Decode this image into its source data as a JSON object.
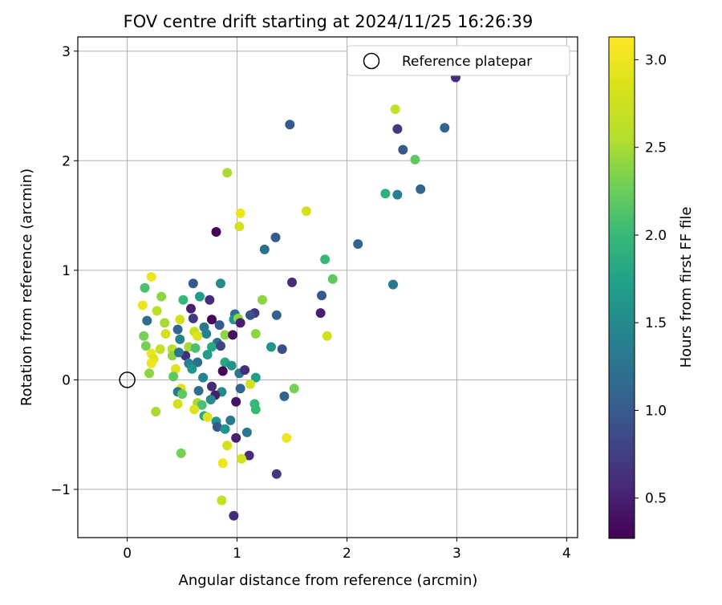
{
  "chart_data": {
    "type": "scatter",
    "title": "FOV centre drift starting at 2024/11/25 16:26:39",
    "xlabel": "Angular distance from reference (arcmin)",
    "ylabel": "Rotation from reference (arcmin)",
    "xlim": [
      -0.45,
      4.1
    ],
    "ylim": [
      -1.44,
      3.13
    ],
    "xticks": [
      0,
      1,
      2,
      3,
      4
    ],
    "xtick_labels": [
      "0",
      "1",
      "2",
      "3",
      "4"
    ],
    "yticks": [
      -1,
      0,
      1,
      2,
      3
    ],
    "ytick_labels": [
      "−1",
      "0",
      "1",
      "2",
      "3"
    ],
    "grid": true,
    "legend": {
      "label": "Reference platepar",
      "placement": "top-right"
    },
    "reference": {
      "x": 0,
      "y": 0
    },
    "colorbar": {
      "label": "Hours from first FF file",
      "min": 0.27,
      "max": 3.13,
      "colormap": "viridis",
      "ticks": [
        0.5,
        1.0,
        1.5,
        2.0,
        2.5,
        3.0
      ],
      "tick_labels": [
        "0.5",
        "1.0",
        "1.5",
        "2.0",
        "2.5",
        "3.0"
      ]
    },
    "points": [
      [
        2.99,
        2.76,
        0.6
      ],
      [
        2.44,
        2.47,
        2.7
      ],
      [
        1.48,
        2.33,
        1.0
      ],
      [
        2.46,
        2.29,
        0.7
      ],
      [
        2.89,
        2.3,
        1.1
      ],
      [
        2.51,
        2.1,
        1.0
      ],
      [
        2.62,
        2.01,
        2.2
      ],
      [
        0.91,
        1.89,
        2.5
      ],
      [
        2.35,
        1.7,
        1.9
      ],
      [
        2.46,
        1.69,
        1.4
      ],
      [
        2.67,
        1.74,
        1.1
      ],
      [
        1.03,
        1.52,
        3.0
      ],
      [
        1.63,
        1.54,
        2.8
      ],
      [
        1.02,
        1.4,
        2.8
      ],
      [
        0.81,
        1.35,
        0.3
      ],
      [
        1.35,
        1.3,
        1.0
      ],
      [
        2.1,
        1.24,
        1.1
      ],
      [
        1.25,
        1.19,
        1.2
      ],
      [
        1.8,
        1.1,
        2.0
      ],
      [
        0.22,
        0.94,
        3.0
      ],
      [
        0.85,
        0.88,
        1.5
      ],
      [
        0.6,
        0.88,
        1.0
      ],
      [
        1.5,
        0.89,
        0.6
      ],
      [
        1.87,
        0.92,
        2.2
      ],
      [
        2.42,
        0.87,
        1.3
      ],
      [
        0.16,
        0.84,
        2.1
      ],
      [
        1.77,
        0.77,
        1.0
      ],
      [
        0.31,
        0.76,
        2.4
      ],
      [
        0.66,
        0.76,
        1.7
      ],
      [
        0.51,
        0.73,
        2.0
      ],
      [
        0.75,
        0.73,
        0.6
      ],
      [
        1.23,
        0.73,
        2.4
      ],
      [
        0.14,
        0.68,
        3.0
      ],
      [
        0.58,
        0.65,
        0.5
      ],
      [
        0.27,
        0.63,
        2.6
      ],
      [
        1.16,
        0.61,
        0.7
      ],
      [
        1.12,
        0.59,
        0.9
      ],
      [
        0.98,
        0.6,
        1.2
      ],
      [
        1.36,
        0.59,
        1.1
      ],
      [
        1.76,
        0.61,
        0.5
      ],
      [
        0.18,
        0.54,
        1.2
      ],
      [
        0.48,
        0.55,
        2.8
      ],
      [
        0.6,
        0.56,
        0.7
      ],
      [
        0.77,
        0.55,
        0.3
      ],
      [
        0.97,
        0.55,
        1.6
      ],
      [
        1.01,
        0.56,
        2.4
      ],
      [
        0.34,
        0.52,
        2.5
      ],
      [
        0.7,
        0.48,
        1.3
      ],
      [
        0.84,
        0.5,
        1.0
      ],
      [
        1.03,
        0.52,
        0.5
      ],
      [
        0.46,
        0.46,
        1.1
      ],
      [
        0.61,
        0.44,
        2.7
      ],
      [
        0.72,
        0.42,
        1.4
      ],
      [
        0.89,
        0.41,
        2.4
      ],
      [
        0.96,
        0.41,
        0.4
      ],
      [
        0.15,
        0.4,
        2.3
      ],
      [
        0.35,
        0.42,
        2.8
      ],
      [
        0.64,
        0.4,
        2.9
      ],
      [
        1.17,
        0.42,
        2.4
      ],
      [
        1.82,
        0.4,
        2.8
      ],
      [
        0.48,
        0.37,
        1.4
      ],
      [
        0.82,
        0.34,
        1.2
      ],
      [
        0.17,
        0.31,
        2.3
      ],
      [
        0.3,
        0.28,
        2.7
      ],
      [
        0.41,
        0.28,
        2.6
      ],
      [
        0.56,
        0.3,
        2.5
      ],
      [
        0.62,
        0.29,
        2.1
      ],
      [
        0.77,
        0.3,
        1.8
      ],
      [
        0.85,
        0.31,
        0.8
      ],
      [
        1.31,
        0.3,
        1.6
      ],
      [
        1.41,
        0.28,
        0.9
      ],
      [
        0.22,
        0.24,
        3.0
      ],
      [
        0.41,
        0.22,
        2.4
      ],
      [
        0.53,
        0.22,
        0.6
      ],
      [
        0.73,
        0.23,
        1.7
      ],
      [
        0.47,
        0.25,
        1.3
      ],
      [
        0.24,
        0.19,
        2.9
      ],
      [
        0.22,
        0.15,
        3.0
      ],
      [
        0.56,
        0.15,
        1.4
      ],
      [
        0.64,
        0.16,
        1.2
      ],
      [
        0.89,
        0.16,
        1.8
      ],
      [
        0.95,
        0.13,
        1.6
      ],
      [
        0.44,
        0.1,
        2.9
      ],
      [
        0.59,
        0.1,
        1.6
      ],
      [
        0.87,
        0.08,
        0.3
      ],
      [
        1.02,
        0.06,
        1.3
      ],
      [
        0.2,
        0.06,
        2.4
      ],
      [
        0.42,
        0.03,
        2.2
      ],
      [
        0.69,
        0.02,
        1.4
      ],
      [
        1.17,
        0.02,
        1.7
      ],
      [
        1.07,
        0.09,
        0.6
      ],
      [
        1.12,
        -0.04,
        2.8
      ],
      [
        1.03,
        -0.08,
        1.1
      ],
      [
        0.49,
        -0.08,
        2.9
      ],
      [
        1.52,
        -0.08,
        2.3
      ],
      [
        0.65,
        -0.1,
        1.2
      ],
      [
        0.77,
        -0.06,
        0.6
      ],
      [
        0.86,
        -0.11,
        1.5
      ],
      [
        0.46,
        -0.11,
        1.3
      ],
      [
        0.8,
        -0.14,
        0.5
      ],
      [
        0.5,
        -0.13,
        2.2
      ],
      [
        0.76,
        -0.18,
        1.5
      ],
      [
        1.43,
        -0.15,
        1.1
      ],
      [
        0.99,
        -0.2,
        0.4
      ],
      [
        0.64,
        -0.21,
        2.5
      ],
      [
        1.16,
        -0.22,
        2.0
      ],
      [
        0.46,
        -0.22,
        2.8
      ],
      [
        0.68,
        -0.23,
        2.1
      ],
      [
        0.61,
        -0.27,
        2.9
      ],
      [
        1.17,
        -0.27,
        2.0
      ],
      [
        0.26,
        -0.29,
        2.5
      ],
      [
        0.7,
        -0.33,
        1.8
      ],
      [
        0.73,
        -0.34,
        2.9
      ],
      [
        0.81,
        -0.38,
        1.6
      ],
      [
        0.94,
        -0.37,
        1.3
      ],
      [
        0.82,
        -0.43,
        1.0
      ],
      [
        0.89,
        -0.45,
        1.6
      ],
      [
        1.09,
        -0.48,
        1.3
      ],
      [
        0.99,
        -0.53,
        0.5
      ],
      [
        1.45,
        -0.53,
        3.0
      ],
      [
        0.91,
        -0.6,
        2.8
      ],
      [
        0.49,
        -0.67,
        2.3
      ],
      [
        1.11,
        -0.69,
        0.6
      ],
      [
        1.04,
        -0.72,
        2.8
      ],
      [
        0.87,
        -0.76,
        3.0
      ],
      [
        1.36,
        -0.86,
        0.7
      ],
      [
        0.86,
        -1.1,
        2.7
      ],
      [
        0.97,
        -1.24,
        0.6
      ]
    ]
  }
}
